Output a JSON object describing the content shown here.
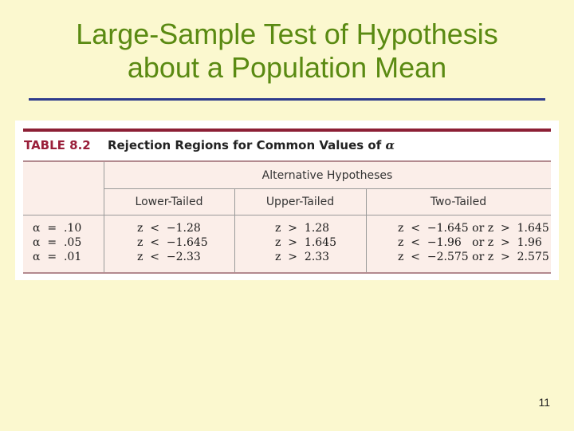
{
  "slide": {
    "title_line1": "Large-Sample Test of Hypothesis",
    "title_line2": "about a Population Mean",
    "page_number": "11"
  },
  "table": {
    "label": "TABLE 8.2",
    "title": "Rejection Regions for Common Values of",
    "title_symbol": "α",
    "group_header": "Alternative Hypotheses",
    "columns": [
      "Lower-Tailed",
      "Upper-Tailed",
      "Two-Tailed"
    ],
    "rows": [
      {
        "alpha": "α  =  .10",
        "lower": "z  <  −1.28",
        "upper": "z  >  1.28",
        "two": "z  <  −1.645 or z  >  1.645"
      },
      {
        "alpha": "α  =  .05",
        "lower": "z  <  −1.645",
        "upper": "z  >  1.645",
        "two": "z  <  −1.96   or z  >  1.96"
      },
      {
        "alpha": "α  =  .01",
        "lower": "z  <  −2.33",
        "upper": "z  >  2.33",
        "two": "z  <  −2.575 or z  >  2.575"
      }
    ]
  },
  "colors": {
    "background": "#fbf8cf",
    "title": "#5a8a12",
    "rule": "#2e3b8c",
    "table_accent": "#8c1f35"
  }
}
